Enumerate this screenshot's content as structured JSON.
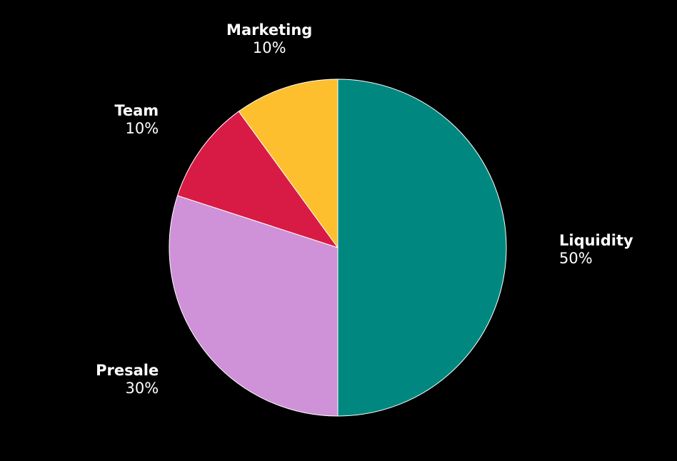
{
  "chart_data": {
    "type": "pie",
    "title": "",
    "start_angle_deg": 0,
    "direction": "clockwise",
    "background": "#000000",
    "slices": [
      {
        "label": "Liquidity",
        "value": 50,
        "value_label": "50%",
        "color": "#008880"
      },
      {
        "label": "Presale",
        "value": 30,
        "value_label": "30%",
        "color": "#CF91D8"
      },
      {
        "label": "Team",
        "value": 10,
        "value_label": "10%",
        "color": "#D81B45"
      },
      {
        "label": "Marketing",
        "value": 10,
        "value_label": "10%",
        "color": "#FDBF2E"
      }
    ]
  }
}
